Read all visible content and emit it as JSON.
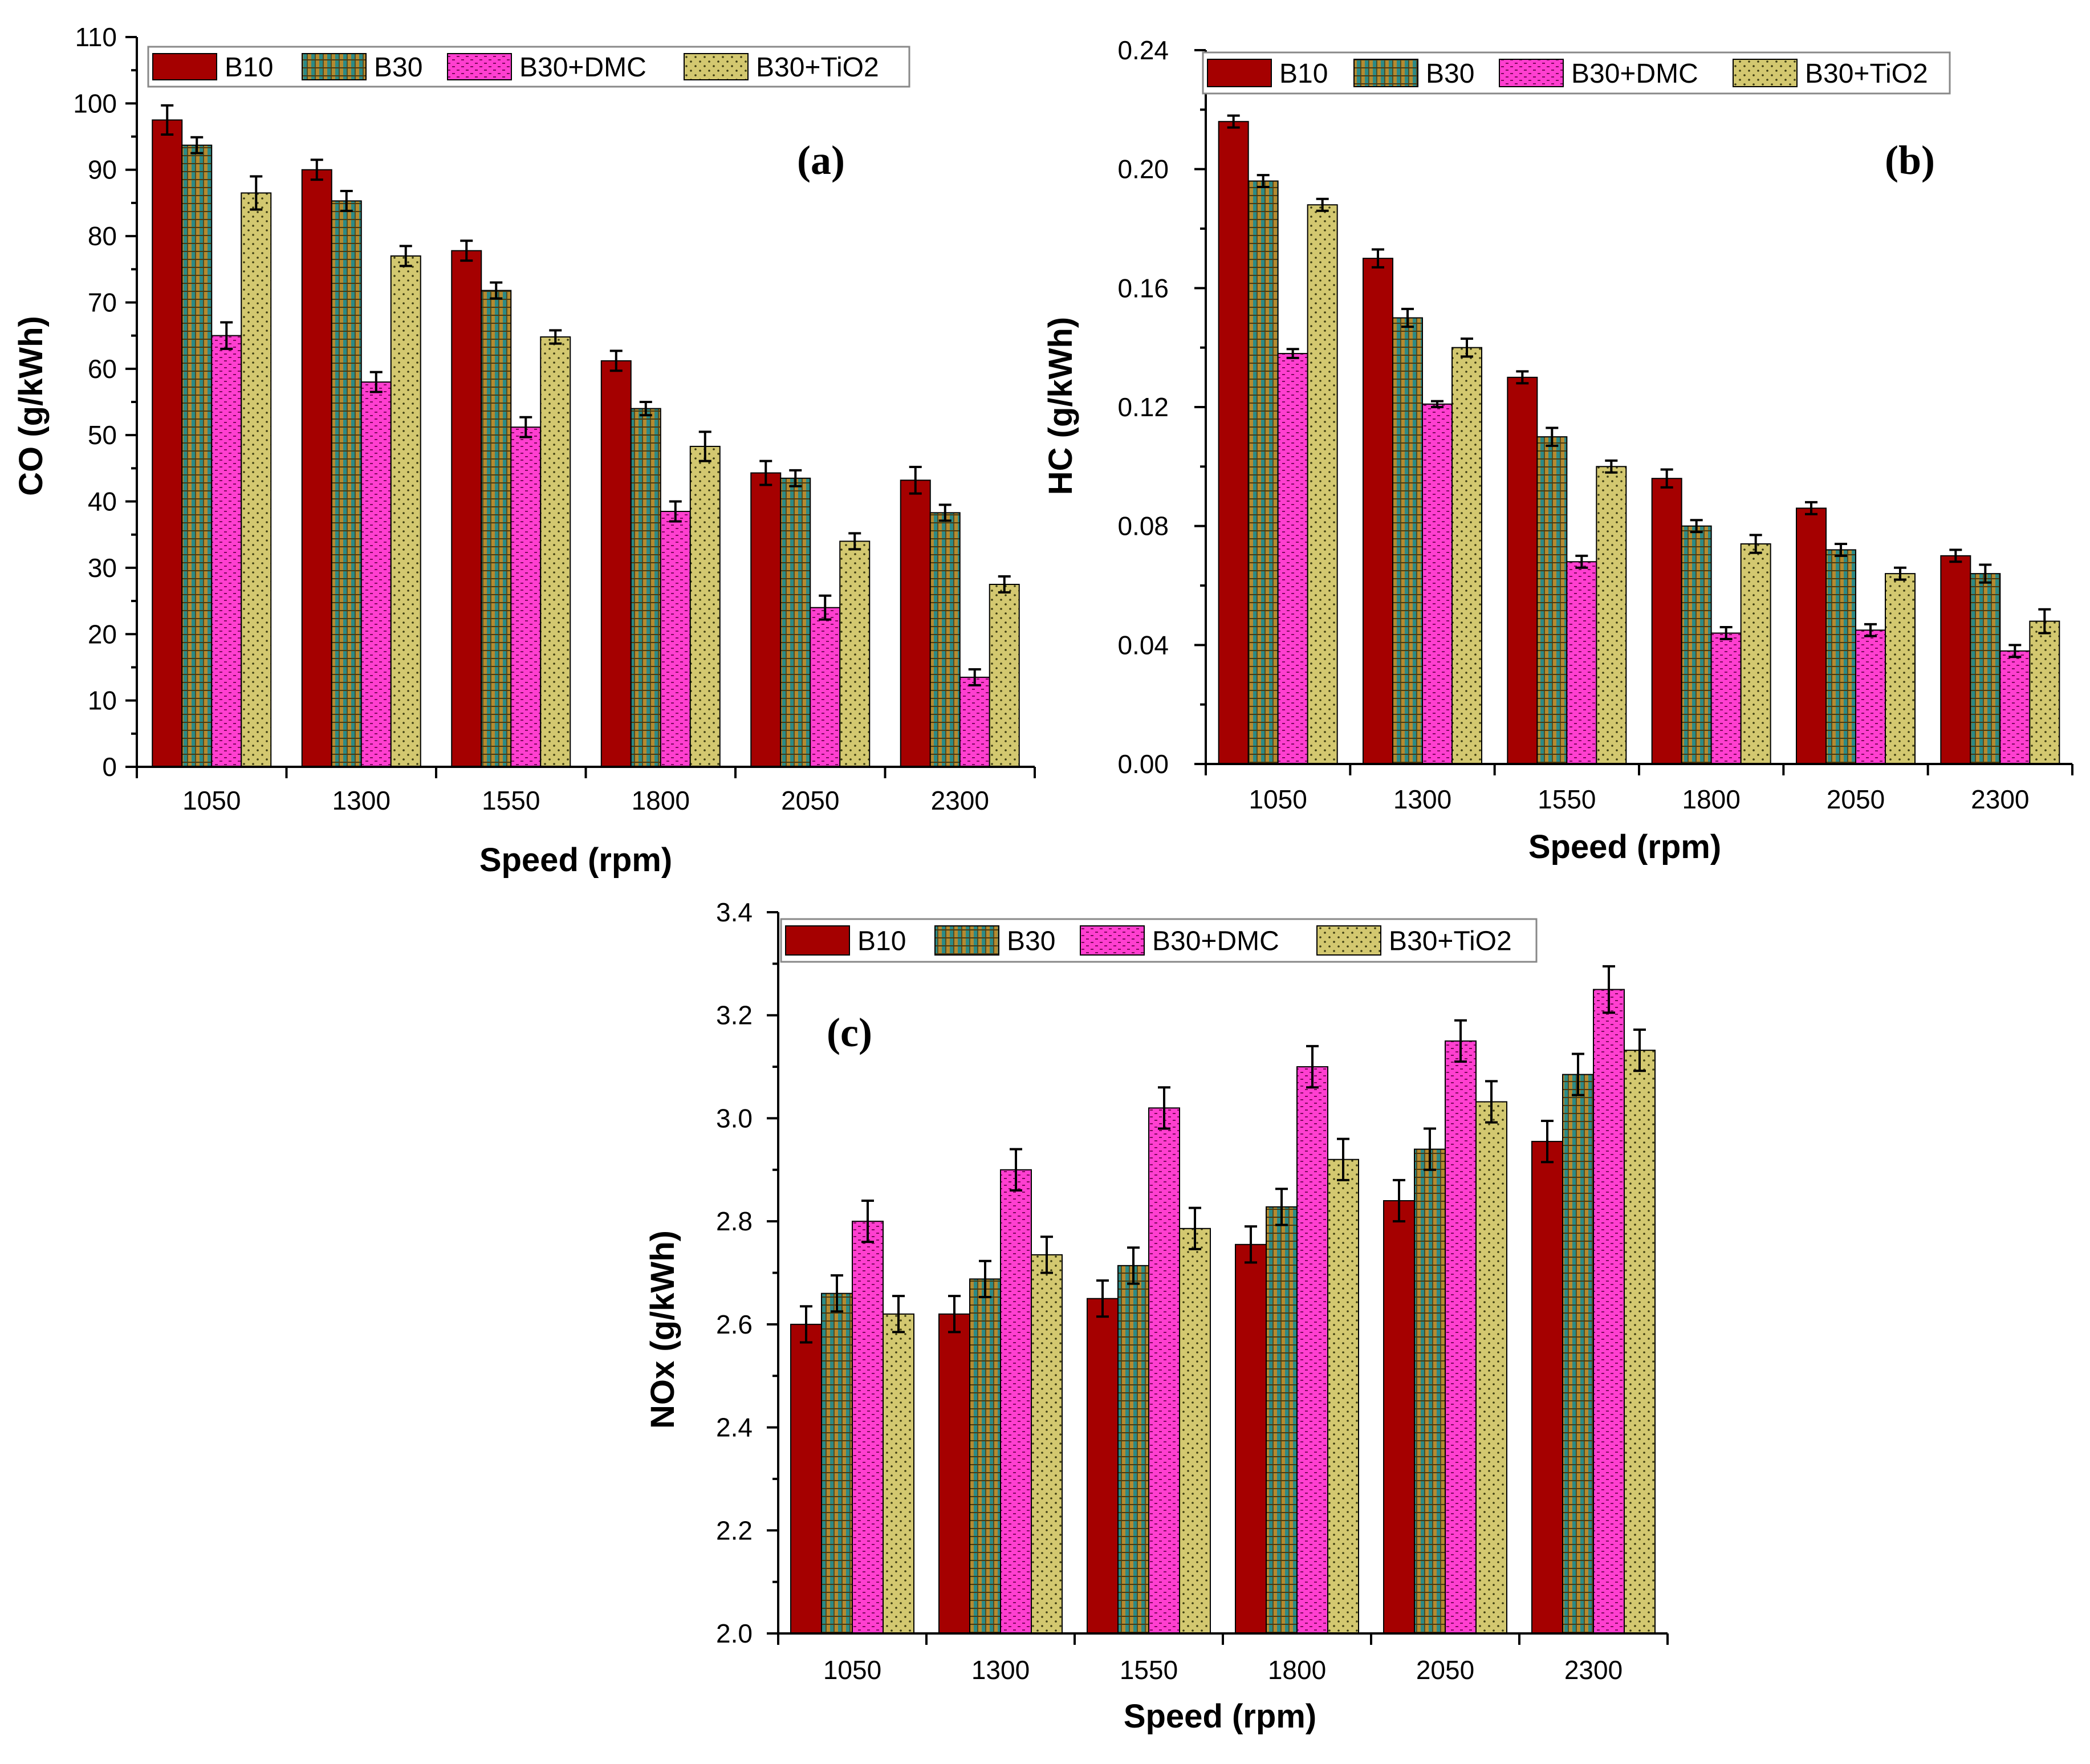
{
  "chart_data": [
    {
      "id": "a",
      "type": "bar",
      "panel_label": "(a)",
      "xlabel": "Speed (rpm)",
      "ylabel": "CO (g/kWh)",
      "ylim": [
        0,
        110
      ],
      "yticks": [
        0,
        10,
        20,
        30,
        40,
        50,
        60,
        70,
        80,
        90,
        100,
        110
      ],
      "ytick_labels": [
        "0",
        "10",
        "20",
        "30",
        "40",
        "50",
        "60",
        "70",
        "80",
        "90",
        "100",
        "110"
      ],
      "categories": [
        "1050",
        "1300",
        "1550",
        "1800",
        "2050",
        "2300"
      ],
      "legend_position": "top-left",
      "series": [
        {
          "name": "B10",
          "values": [
            97.5,
            90.0,
            77.8,
            61.2,
            44.3,
            43.2
          ],
          "errors": [
            2.2,
            1.5,
            1.5,
            1.5,
            1.8,
            2.0
          ]
        },
        {
          "name": "B30",
          "values": [
            93.7,
            85.3,
            71.8,
            54.0,
            43.5,
            38.3
          ],
          "errors": [
            1.2,
            1.5,
            1.2,
            1.0,
            1.2,
            1.2
          ]
        },
        {
          "name": "B30+DMC",
          "values": [
            65.0,
            58.0,
            51.2,
            38.5,
            24.0,
            13.5
          ],
          "errors": [
            2.0,
            1.5,
            1.5,
            1.5,
            1.8,
            1.2
          ]
        },
        {
          "name": "B30+TiO2",
          "values": [
            86.5,
            77.0,
            64.8,
            48.3,
            34.0,
            27.5
          ],
          "errors": [
            2.5,
            1.5,
            1.0,
            2.2,
            1.2,
            1.2
          ]
        }
      ]
    },
    {
      "id": "b",
      "type": "bar",
      "panel_label": "(b)",
      "xlabel": "Speed (rpm)",
      "ylabel": "HC (g/kWh)",
      "ylim": [
        0,
        0.24
      ],
      "yticks": [
        0,
        0.04,
        0.08,
        0.12,
        0.16,
        0.2,
        0.24
      ],
      "ytick_labels": [
        "0.00",
        "0.04",
        "0.08",
        "0.12",
        "0.16",
        "0.20",
        "0.24"
      ],
      "categories": [
        "1050",
        "1300",
        "1550",
        "1800",
        "2050",
        "2300"
      ],
      "legend_position": "top-left",
      "series": [
        {
          "name": "B10",
          "values": [
            0.216,
            0.17,
            0.13,
            0.096,
            0.086,
            0.07
          ],
          "errors": [
            0.002,
            0.003,
            0.002,
            0.003,
            0.002,
            0.002
          ]
        },
        {
          "name": "B30",
          "values": [
            0.196,
            0.15,
            0.11,
            0.08,
            0.072,
            0.064
          ],
          "errors": [
            0.002,
            0.003,
            0.003,
            0.002,
            0.002,
            0.003
          ]
        },
        {
          "name": "B30+DMC",
          "values": [
            0.138,
            0.121,
            0.068,
            0.044,
            0.045,
            0.038
          ],
          "errors": [
            0.0015,
            0.001,
            0.002,
            0.002,
            0.002,
            0.002
          ]
        },
        {
          "name": "B30+TiO2",
          "values": [
            0.188,
            0.14,
            0.1,
            0.074,
            0.064,
            0.048
          ],
          "errors": [
            0.002,
            0.003,
            0.002,
            0.003,
            0.002,
            0.004
          ]
        }
      ]
    },
    {
      "id": "c",
      "type": "bar",
      "panel_label": "(c)",
      "xlabel": "Speed (rpm)",
      "ylabel": "NOx (g/kWh)",
      "ylim": [
        2.0,
        3.4
      ],
      "yticks": [
        2.0,
        2.2,
        2.4,
        2.6,
        2.8,
        3.0,
        3.2,
        3.4
      ],
      "ytick_labels": [
        "2.0",
        "2.2",
        "2.4",
        "2.6",
        "2.8",
        "3.0",
        "3.2",
        "3.4"
      ],
      "categories": [
        "1050",
        "1300",
        "1550",
        "1800",
        "2050",
        "2300"
      ],
      "legend_position": "top-left",
      "series": [
        {
          "name": "B10",
          "values": [
            2.6,
            2.62,
            2.65,
            2.755,
            2.84,
            2.955
          ],
          "errors": [
            0.035,
            0.035,
            0.035,
            0.035,
            0.04,
            0.04
          ]
        },
        {
          "name": "B30",
          "values": [
            2.66,
            2.688,
            2.714,
            2.828,
            2.94,
            3.085
          ],
          "errors": [
            0.035,
            0.035,
            0.035,
            0.035,
            0.04,
            0.04
          ]
        },
        {
          "name": "B30+DMC",
          "values": [
            2.8,
            2.9,
            3.02,
            3.1,
            3.15,
            3.25
          ],
          "errors": [
            0.04,
            0.04,
            0.04,
            0.04,
            0.04,
            0.045
          ]
        },
        {
          "name": "B30+TiO2",
          "values": [
            2.62,
            2.735,
            2.786,
            2.92,
            3.032,
            3.132
          ],
          "errors": [
            0.035,
            0.035,
            0.04,
            0.04,
            0.04,
            0.04
          ]
        }
      ]
    }
  ],
  "series_colors": {
    "B10": "#a50000",
    "B30": "#2f8a80",
    "B30+DMC": "#ff33cc",
    "B30+TiO2": "#dcd27a"
  }
}
